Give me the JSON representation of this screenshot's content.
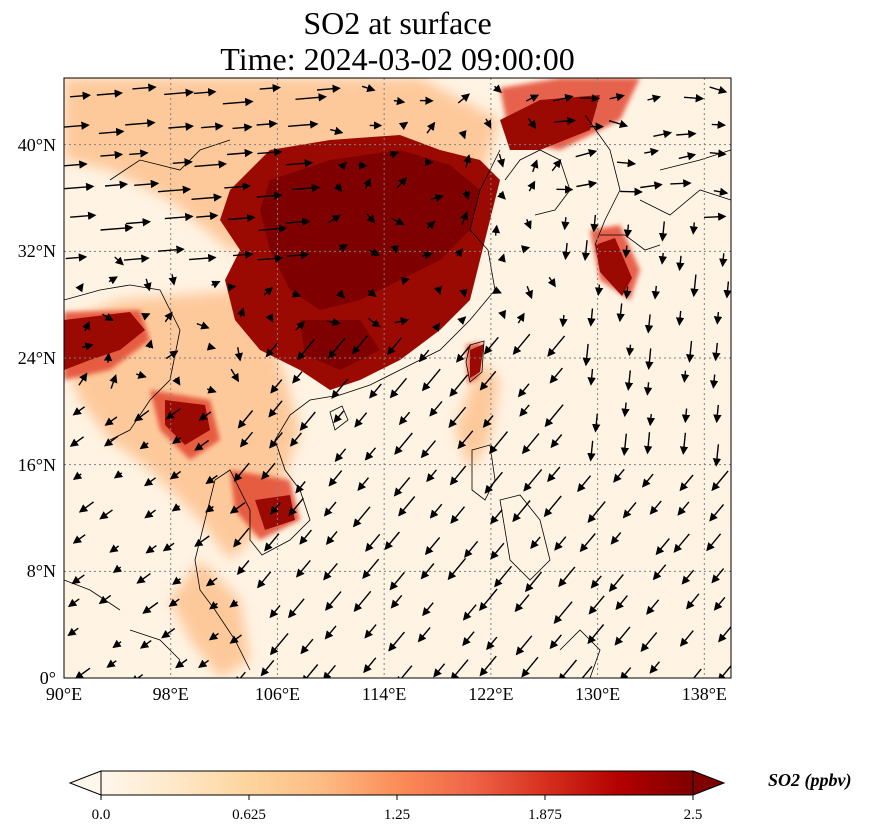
{
  "title": {
    "line1": "SO2 at surface",
    "line2": "Time: 2024-03-02 09:00:00"
  },
  "map": {
    "extent": {
      "lon": [
        90,
        140
      ],
      "lat": [
        0,
        45
      ]
    },
    "lat_ticks": [
      {
        "value": 0,
        "label": "0°"
      },
      {
        "value": 8,
        "label": "8°N"
      },
      {
        "value": 16,
        "label": "16°N"
      },
      {
        "value": 24,
        "label": "24°N"
      },
      {
        "value": 32,
        "label": "32°N"
      },
      {
        "value": 40,
        "label": "40°N"
      }
    ],
    "lon_ticks": [
      {
        "value": 90,
        "label": "90°E"
      },
      {
        "value": 98,
        "label": "98°E"
      },
      {
        "value": 106,
        "label": "106°E"
      },
      {
        "value": 114,
        "label": "114°E"
      },
      {
        "value": 122,
        "label": "122°E"
      },
      {
        "value": 130,
        "label": "130°E"
      },
      {
        "value": 138,
        "label": "138°E"
      }
    ],
    "gridlines": true,
    "wind_vectors": true,
    "colors": {
      "background": "#fff3e3",
      "high": "#7f0000",
      "mid": "#d7301f",
      "low": "#fdbb84",
      "coast": "#000000",
      "arrow": "#000000",
      "grid": "#808080"
    }
  },
  "colorbar": {
    "label": "SO2 (ppbv)",
    "min": 0.0,
    "max": 2.5,
    "ticks": [
      "0.0",
      "0.625",
      "1.25",
      "1.875",
      "2.5"
    ],
    "extend": "both",
    "colormap": [
      "#fff7ec",
      "#fee8c8",
      "#fdd49e",
      "#fdbb84",
      "#fc8d59",
      "#ef6548",
      "#d7301f",
      "#b30000",
      "#7f0000"
    ]
  }
}
